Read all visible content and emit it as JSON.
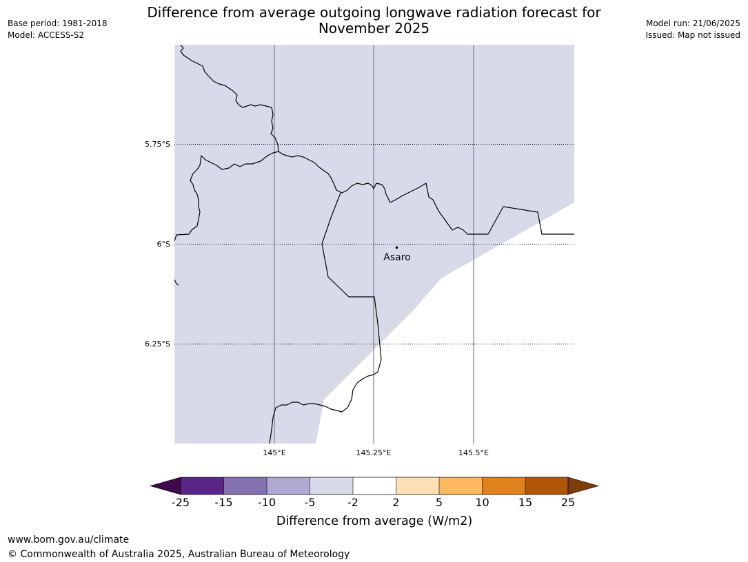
{
  "header": {
    "title_line1": "Difference from average outgoing longwave radiation forecast for",
    "title_line2": "November 2025",
    "base_period": "Base period: 1981-2018",
    "model": "Model: ACCESS-S2",
    "model_run": "Model run: 21/06/2025",
    "issued": "Issued: Map not issued"
  },
  "map": {
    "lat_labels": [
      "5.75°S",
      "6°S",
      "6.25°S"
    ],
    "lon_labels": [
      "145°E",
      "145.25°E",
      "145.5°E"
    ],
    "place": {
      "name": "Asaro",
      "lon": 145.3,
      "lat": -6.01
    },
    "fill_category": "-5 to -2",
    "colors": {
      "filled_area": "#d8d9e9",
      "border": "#000000",
      "graticule": "#808080"
    }
  },
  "colorbar": {
    "title": "Difference from average (W/m2)",
    "tick_labels": [
      "-25",
      "-15",
      "-10",
      "-5",
      "-2",
      "2",
      "5",
      "10",
      "15",
      "25"
    ],
    "colors": [
      "#3f0a4a",
      "#592688",
      "#8472b0",
      "#b0a9d1",
      "#d8d9e9",
      "#ffffff",
      "#fee0b5",
      "#fbb861",
      "#e0821b",
      "#b05609",
      "#7f3d0c"
    ]
  },
  "footer": {
    "url": "www.bom.gov.au/climate",
    "copyright": "© Commonwealth of Australia 2025, Australian Bureau of Meteorology"
  }
}
